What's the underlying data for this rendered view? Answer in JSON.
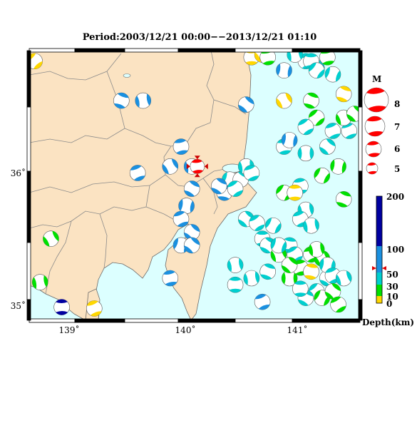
{
  "title": "Period:2003/12/21 00:00−−2013/12/21 01:10",
  "x_ticks": [
    "139˚",
    "140˚",
    "141˚"
  ],
  "y_ticks": [
    "36˚",
    "35˚"
  ],
  "magnitude_legend": {
    "title": "M",
    "items": [
      "8",
      "7",
      "6",
      "5"
    ]
  },
  "depth_scale": {
    "labels": [
      "200",
      "100",
      "50",
      "30",
      "10",
      "0"
    ],
    "unit": "Depth(km)"
  },
  "colors": {
    "land": "#fbe3c2",
    "sea": "#dcffff",
    "depth_0_10": "#ffd700",
    "depth_10_30": "#00e000",
    "depth_30_50": "#00cfcf",
    "depth_50_100": "#1a90e0",
    "depth_100_200": "#0000a0",
    "main_event": "#ff0000"
  },
  "main_event": {
    "lon": 140.1,
    "lat": 36.05,
    "depth_km": 65
  }
}
